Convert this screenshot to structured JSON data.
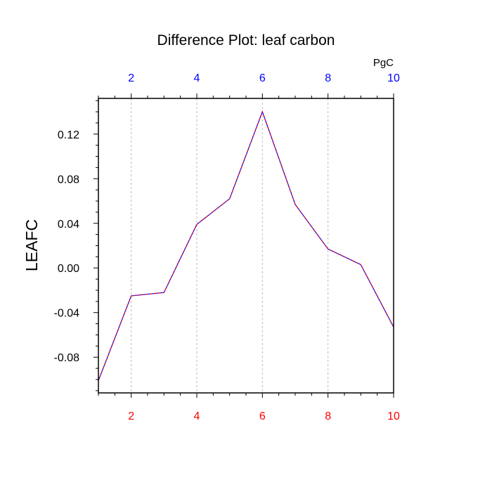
{
  "chart_data": {
    "type": "line",
    "title": "Difference Plot: leaf carbon",
    "ylabel": "LEAFC",
    "xlabel": "",
    "units": "PgC",
    "x": [
      1,
      2,
      3,
      4,
      5,
      6,
      7,
      8,
      9,
      10
    ],
    "series": [
      {
        "values": [
          -0.101,
          -0.025,
          -0.022,
          0.039,
          0.062,
          0.14,
          0.057,
          0.017,
          0.003,
          -0.053
        ],
        "color": "#0000ff",
        "dash_color": "#ff0000"
      }
    ],
    "xlim": [
      1,
      10
    ],
    "ylim": [
      -0.112,
      0.152
    ],
    "x_ticks": [
      2,
      4,
      6,
      8,
      10
    ],
    "x_tick_labels": [
      "2",
      "4",
      "6",
      "8",
      "10"
    ],
    "y_ticks": [
      0.12,
      0.08,
      0.04,
      0.0,
      -0.04,
      -0.08
    ],
    "y_tick_labels": [
      "0.12",
      "0.08",
      "0.04",
      "0.00",
      "-0.04",
      "-0.08"
    ],
    "bottom_tick_color": "#ff0000",
    "top_tick_color": "#0000ff",
    "grid": "vertical-dashed"
  }
}
